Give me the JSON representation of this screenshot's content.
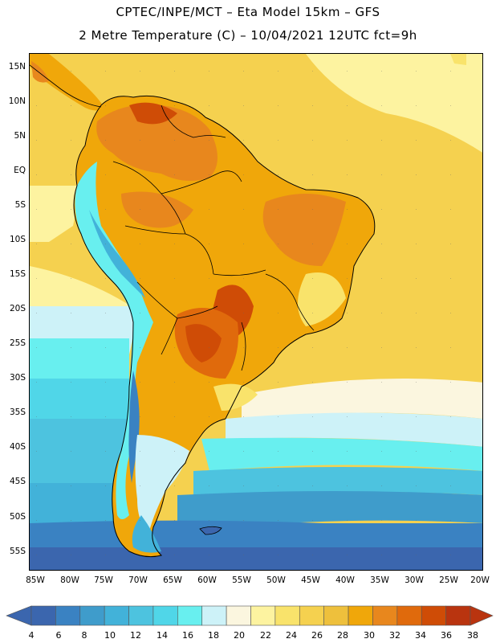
{
  "header": {
    "title_line1": "CPTEC/INPE/MCT –  Eta Model 15km – GFS",
    "title_line2": "2 Metre Temperature (C) – 10/04/2021 12UTC fct=9h"
  },
  "map": {
    "lat_labels": [
      "15N",
      "10N",
      "5N",
      "EQ",
      "5S",
      "10S",
      "15S",
      "20S",
      "25S",
      "30S",
      "35S",
      "40S",
      "45S",
      "50S",
      "55S"
    ],
    "lon_labels": [
      "85W",
      "80W",
      "75W",
      "70W",
      "65W",
      "60W",
      "55W",
      "50W",
      "45W",
      "40W",
      "35W",
      "30W",
      "25W",
      "20W"
    ],
    "icons": {
      "continent": "continent-icon",
      "ocean": "ocean-icon"
    }
  },
  "legend": {
    "values": [
      "4",
      "6",
      "8",
      "10",
      "12",
      "14",
      "16",
      "18",
      "20",
      "22",
      "24",
      "26",
      "28",
      "30",
      "32",
      "34",
      "36",
      "38"
    ],
    "colors": [
      "#3b66ae",
      "#3a82c2",
      "#3f9ccb",
      "#42b2d9",
      "#4dc3df",
      "#50d6e8",
      "#68efef",
      "#cdf2f8",
      "#fbf6df",
      "#fdf3a0",
      "#f9e36b",
      "#f5d14f",
      "#eec03c",
      "#f0a70a",
      "#e8871d",
      "#e06a0c",
      "#cf4c06",
      "#b9340f"
    ]
  }
}
